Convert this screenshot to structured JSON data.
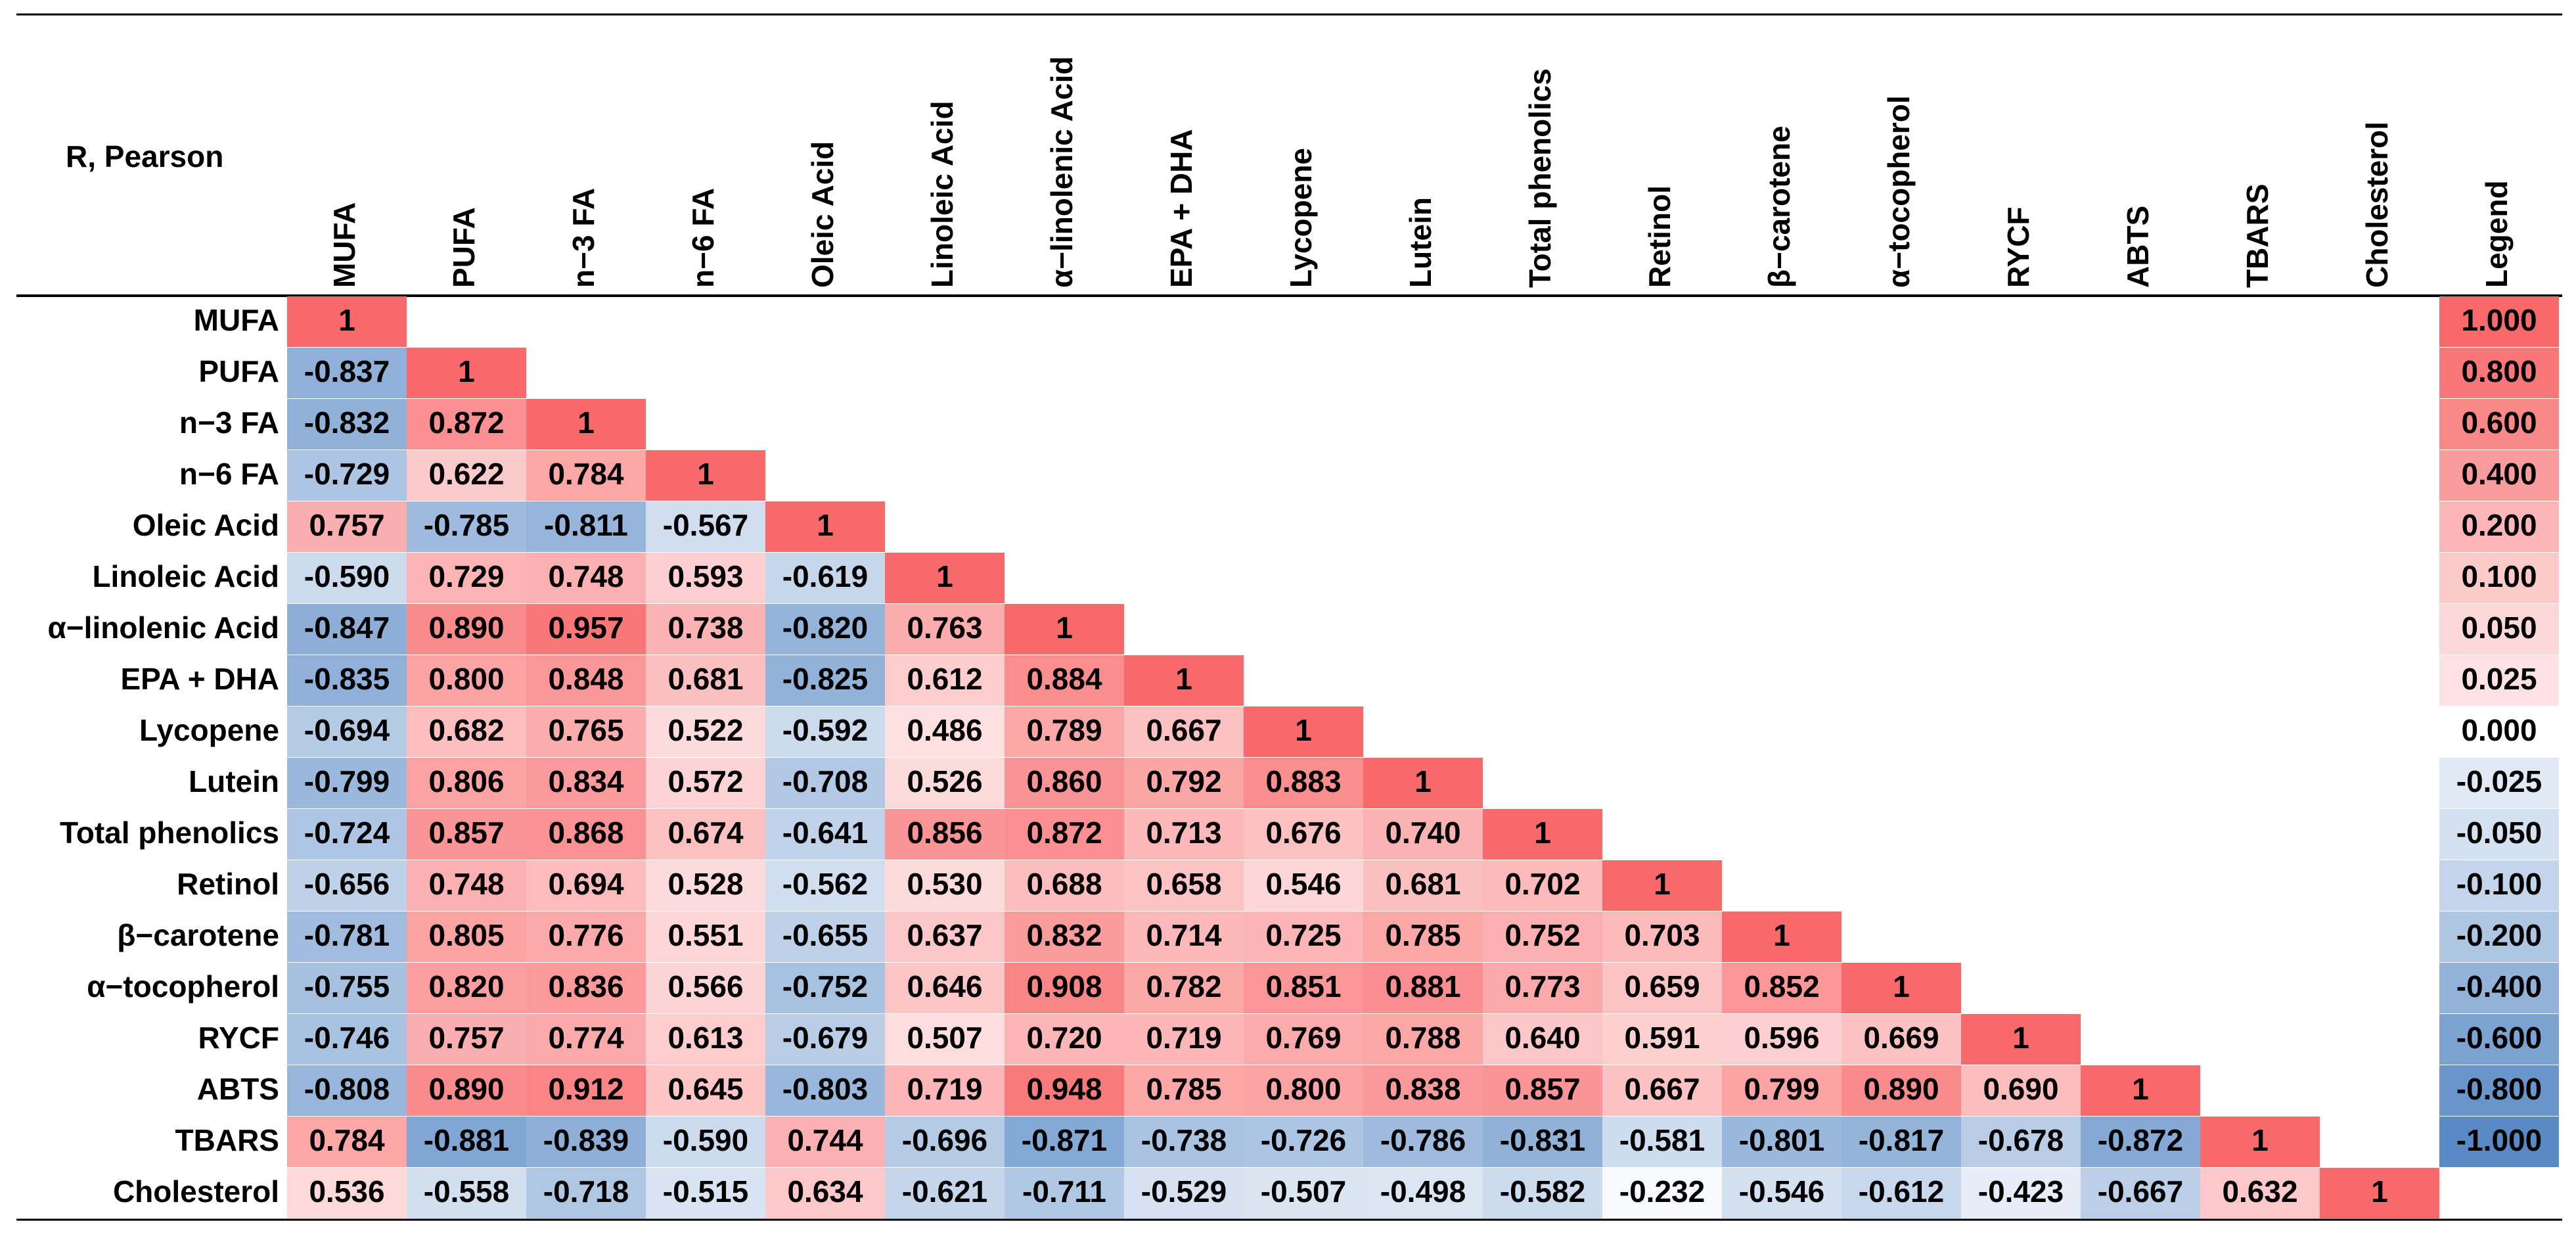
{
  "table": {
    "corner": "R, Pearson",
    "columns": [
      "MUFA",
      "PUFA",
      "n−3 FA",
      "n−6 FA",
      "Oleic Acid",
      "Linoleic Acid",
      "α−linolenic Acid",
      "EPA + DHA",
      "Lycopene",
      "Lutein",
      "Total phenolics",
      "Retinol",
      "β−carotene",
      "α−tocopherol",
      "RYCF",
      "ABTS",
      "TBARS",
      "Cholesterol",
      "Legend"
    ],
    "rows": [
      {
        "label": "MUFA",
        "cells": [
          "1"
        ]
      },
      {
        "label": "PUFA",
        "cells": [
          "-0.837",
          "1"
        ]
      },
      {
        "label": "n−3 FA",
        "cells": [
          "-0.832",
          "0.872",
          "1"
        ]
      },
      {
        "label": "n−6 FA",
        "cells": [
          "-0.729",
          "0.622",
          "0.784",
          "1"
        ]
      },
      {
        "label": "Oleic Acid",
        "cells": [
          "0.757",
          "-0.785",
          "-0.811",
          "-0.567",
          "1"
        ]
      },
      {
        "label": "Linoleic Acid",
        "cells": [
          "-0.590",
          "0.729",
          "0.748",
          "0.593",
          "-0.619",
          "1"
        ]
      },
      {
        "label": "α−linolenic Acid",
        "cells": [
          "-0.847",
          "0.890",
          "0.957",
          "0.738",
          "-0.820",
          "0.763",
          "1"
        ]
      },
      {
        "label": "EPA + DHA",
        "cells": [
          "-0.835",
          "0.800",
          "0.848",
          "0.681",
          "-0.825",
          "0.612",
          "0.884",
          "1"
        ]
      },
      {
        "label": "Lycopene",
        "cells": [
          "-0.694",
          "0.682",
          "0.765",
          "0.522",
          "-0.592",
          "0.486",
          "0.789",
          "0.667",
          "1"
        ]
      },
      {
        "label": "Lutein",
        "cells": [
          "-0.799",
          "0.806",
          "0.834",
          "0.572",
          "-0.708",
          "0.526",
          "0.860",
          "0.792",
          "0.883",
          "1"
        ]
      },
      {
        "label": "Total phenolics",
        "cells": [
          "-0.724",
          "0.857",
          "0.868",
          "0.674",
          "-0.641",
          "0.856",
          "0.872",
          "0.713",
          "0.676",
          "0.740",
          "1"
        ]
      },
      {
        "label": "Retinol",
        "cells": [
          "-0.656",
          "0.748",
          "0.694",
          "0.528",
          "-0.562",
          "0.530",
          "0.688",
          "0.658",
          "0.546",
          "0.681",
          "0.702",
          "1"
        ]
      },
      {
        "label": "β−carotene",
        "cells": [
          "-0.781",
          "0.805",
          "0.776",
          "0.551",
          "-0.655",
          "0.637",
          "0.832",
          "0.714",
          "0.725",
          "0.785",
          "0.752",
          "0.703",
          "1"
        ]
      },
      {
        "label": "α−tocopherol",
        "cells": [
          "-0.755",
          "0.820",
          "0.836",
          "0.566",
          "-0.752",
          "0.646",
          "0.908",
          "0.782",
          "0.851",
          "0.881",
          "0.773",
          "0.659",
          "0.852",
          "1"
        ]
      },
      {
        "label": "RYCF",
        "cells": [
          "-0.746",
          "0.757",
          "0.774",
          "0.613",
          "-0.679",
          "0.507",
          "0.720",
          "0.719",
          "0.769",
          "0.788",
          "0.640",
          "0.591",
          "0.596",
          "0.669",
          "1"
        ]
      },
      {
        "label": "ABTS",
        "cells": [
          "-0.808",
          "0.890",
          "0.912",
          "0.645",
          "-0.803",
          "0.719",
          "0.948",
          "0.785",
          "0.800",
          "0.838",
          "0.857",
          "0.667",
          "0.799",
          "0.890",
          "0.690",
          "1"
        ]
      },
      {
        "label": "TBARS",
        "cells": [
          "0.784",
          "-0.881",
          "-0.839",
          "-0.590",
          "0.744",
          "-0.696",
          "-0.871",
          "-0.738",
          "-0.726",
          "-0.786",
          "-0.831",
          "-0.581",
          "-0.801",
          "-0.817",
          "-0.678",
          "-0.872",
          "1"
        ]
      },
      {
        "label": "Cholesterol",
        "cells": [
          "0.536",
          "-0.558",
          "-0.718",
          "-0.515",
          "0.634",
          "-0.621",
          "-0.711",
          "-0.529",
          "-0.507",
          "-0.498",
          "-0.582",
          "-0.232",
          "-0.546",
          "-0.612",
          "-0.423",
          "-0.667",
          "0.632",
          "1"
        ]
      }
    ],
    "legend": [
      "1.000",
      "0.800",
      "0.600",
      "0.400",
      "0.200",
      "0.100",
      "0.050",
      "0.025",
      "0.000",
      "-0.025",
      "-0.050",
      "-0.100",
      "-0.200",
      "-0.400",
      "-0.600",
      "-0.800",
      "-1.000"
    ]
  }
}
